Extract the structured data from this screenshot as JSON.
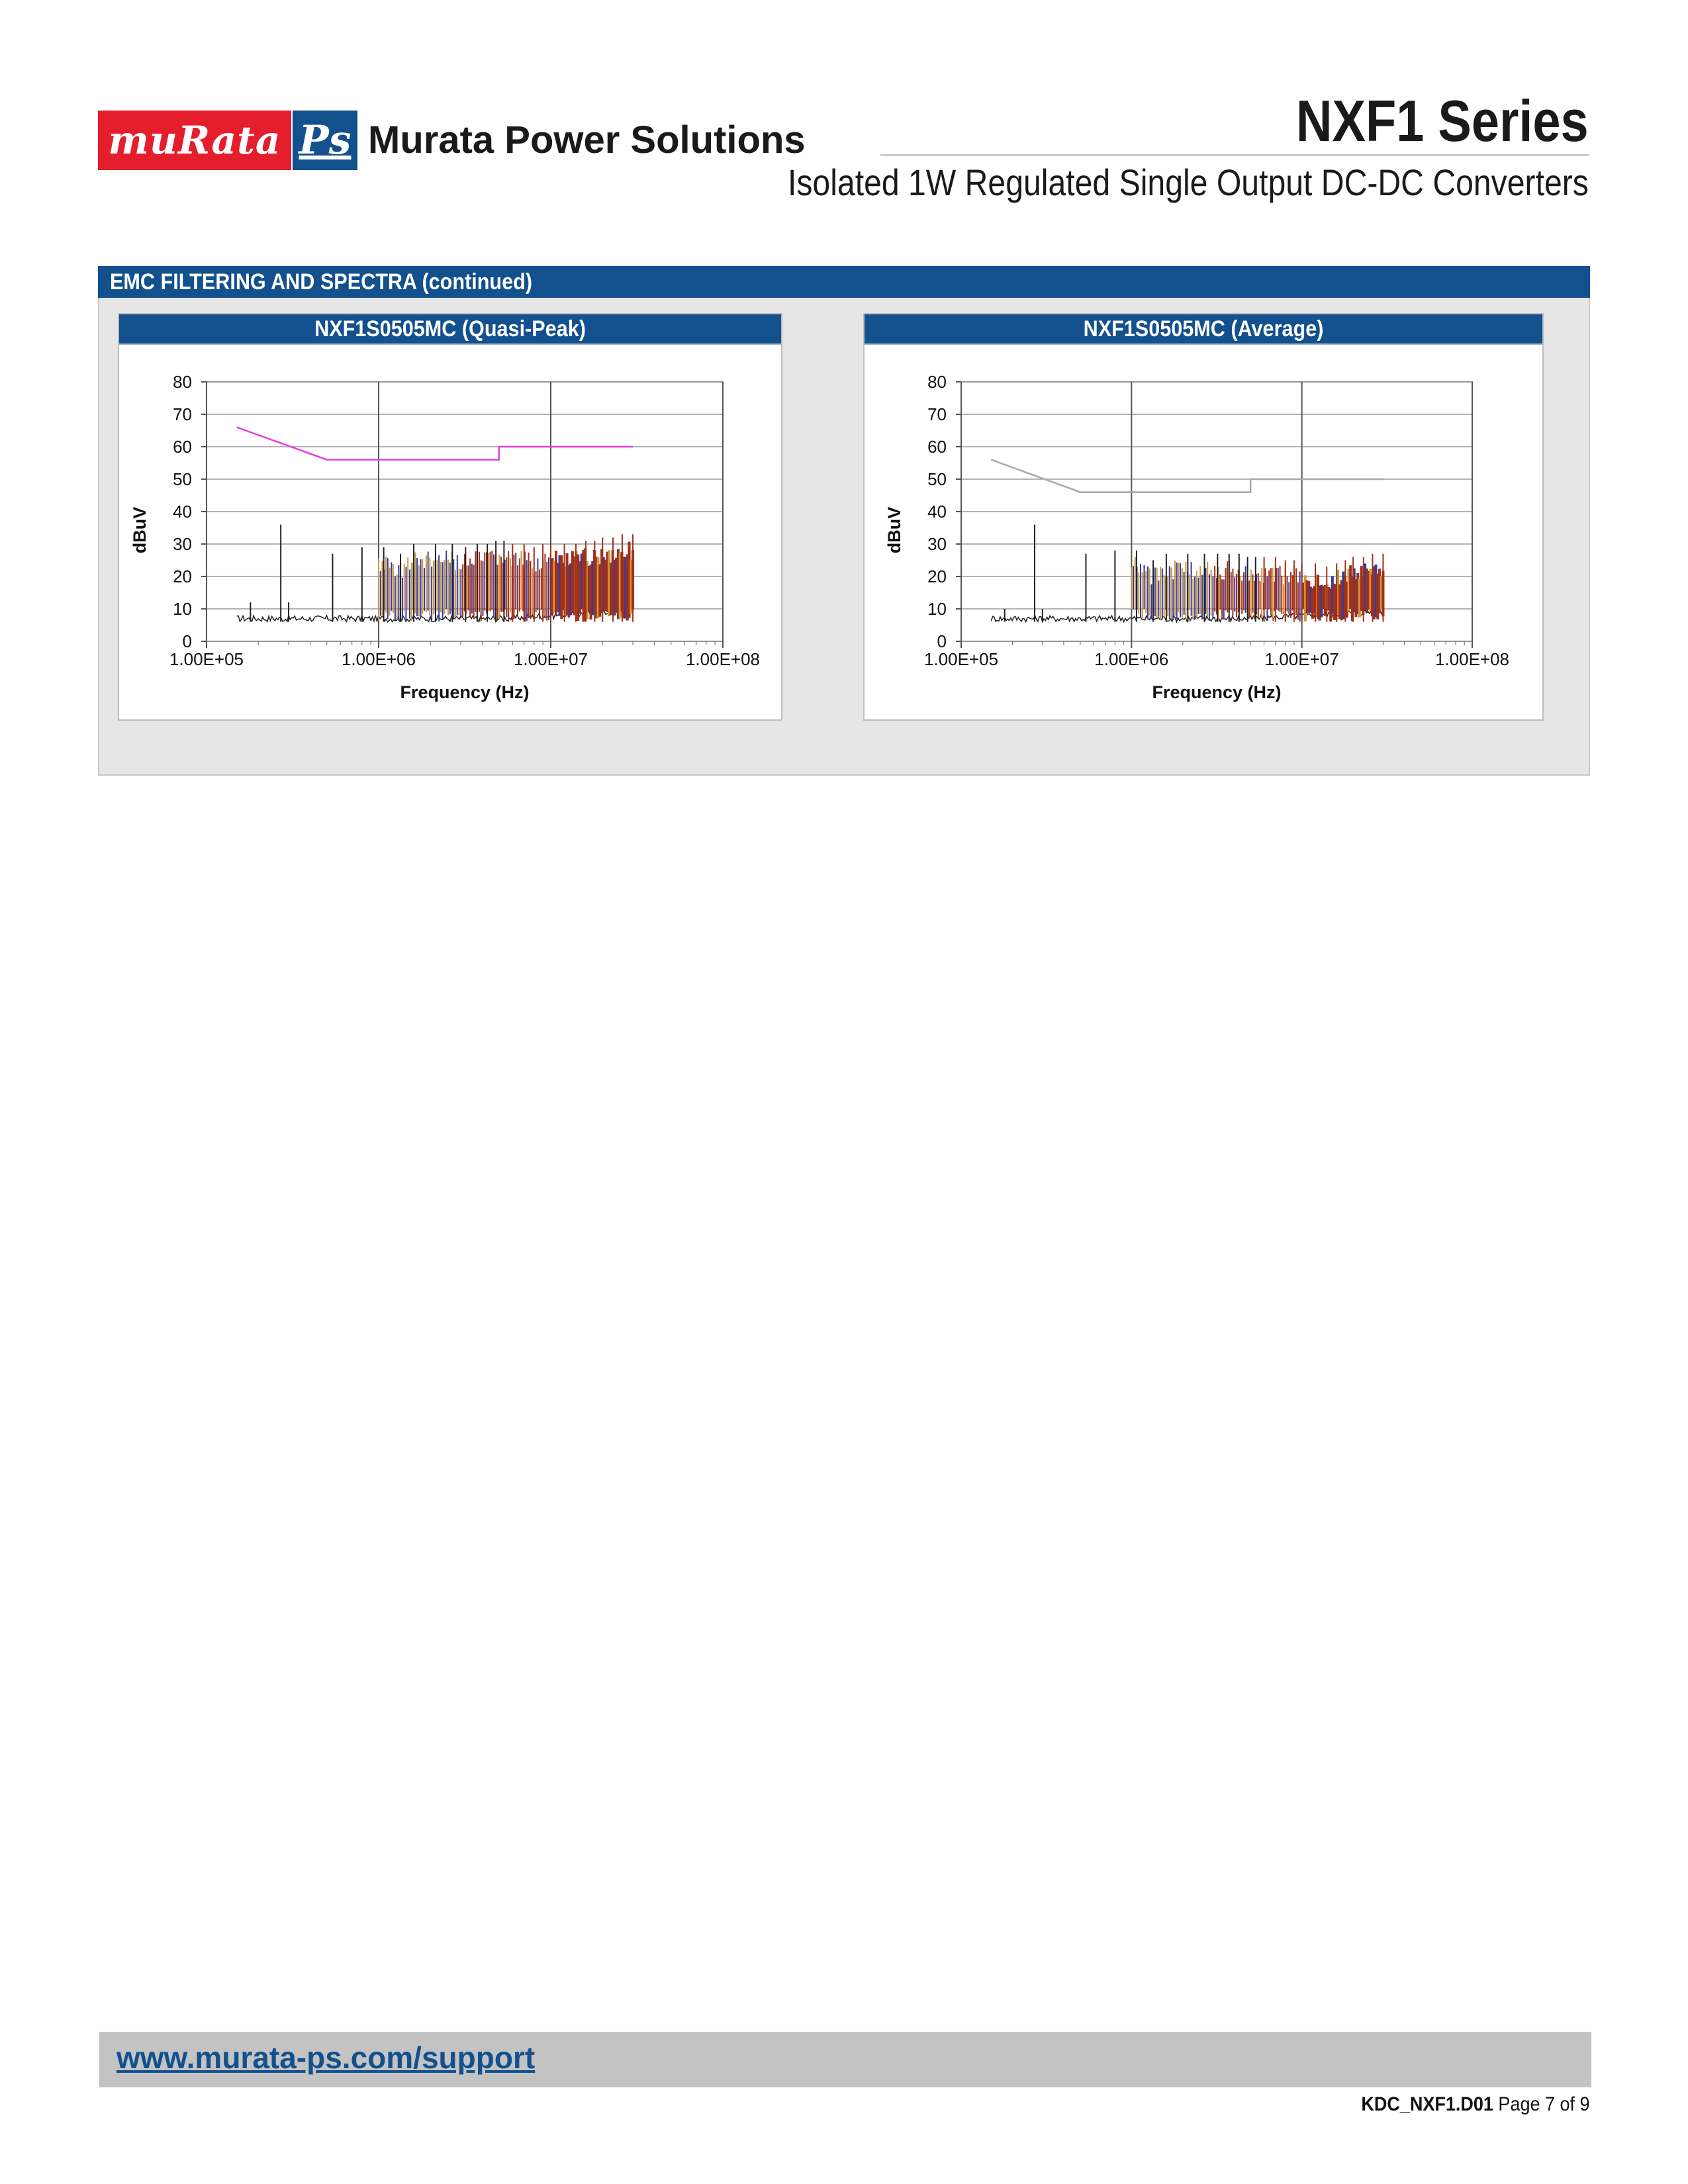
{
  "header": {
    "logo_murata": "muRata",
    "logo_ps": "Ps",
    "company": "Murata Power Solutions",
    "series": "NXF1 Series",
    "subtitle": "Isolated 1W Regulated Single Output DC-DC Converters"
  },
  "section": {
    "title": "EMC FILTERING AND SPECTRA (continued)"
  },
  "colors": {
    "brand_blue": "#12508e",
    "brand_red": "#e41e2d",
    "limit_quasi_peak": "#e040e0",
    "limit_average": "#a8a8a8",
    "spectrum_dark": "#222222",
    "spectrum_red": "#a0301a",
    "spectrum_blue": "#3a3aa0"
  },
  "chart_data": [
    {
      "type": "line",
      "panel_title": "NXF1S0505MC (Quasi-Peak)",
      "xlabel": "Frequency (Hz)",
      "ylabel": "dBuV",
      "x_scale": "log",
      "xlim": [
        100000,
        100000000
      ],
      "ylim": [
        0,
        80
      ],
      "x_tick_labels": [
        "1.00E+05",
        "1.00E+06",
        "1.00E+07",
        "1.00E+08"
      ],
      "y_tick_labels": [
        "0",
        "10",
        "20",
        "30",
        "40",
        "50",
        "60",
        "70",
        "80"
      ],
      "grid": true,
      "limit_line": {
        "x": [
          150000,
          500000,
          500000,
          5000000,
          5000000,
          30000000
        ],
        "y": [
          66,
          56,
          56,
          56,
          60,
          60
        ]
      },
      "peaks": {
        "x": [
          180000,
          270000,
          300000,
          540000,
          800000,
          1070000,
          1340000,
          1600000,
          2140000,
          2680000,
          3200000,
          3740000,
          4280000,
          4800000,
          5350000,
          6000000,
          7000000,
          8000000,
          9000000,
          10000000,
          12000000,
          14000000,
          16000000,
          18000000,
          20000000,
          23000000,
          26000000,
          30000000
        ],
        "y": [
          12,
          36,
          12,
          27,
          29,
          29,
          27,
          30,
          30,
          30,
          29,
          30,
          30,
          31,
          31,
          30,
          30,
          29,
          30,
          30,
          30,
          30,
          31,
          31,
          32,
          32,
          33,
          33
        ]
      }
    },
    {
      "type": "line",
      "panel_title": "NXF1S0505MC  (Average)",
      "xlabel": "Frequency (Hz)",
      "ylabel": "dBuV",
      "x_scale": "log",
      "xlim": [
        100000,
        100000000
      ],
      "ylim": [
        0,
        80
      ],
      "x_tick_labels": [
        "1.00E+05",
        "1.00E+06",
        "1.00E+07",
        "1.00E+08"
      ],
      "y_tick_labels": [
        "0",
        "10",
        "20",
        "30",
        "40",
        "50",
        "60",
        "70",
        "80"
      ],
      "grid": true,
      "limit_line": {
        "x": [
          150000,
          500000,
          500000,
          5000000,
          5000000,
          30000000
        ],
        "y": [
          56,
          46,
          46,
          46,
          50,
          50
        ]
      },
      "peaks": {
        "x": [
          180000,
          270000,
          300000,
          540000,
          800000,
          1070000,
          1340000,
          1600000,
          2140000,
          2680000,
          3200000,
          3740000,
          4280000,
          4800000,
          5350000,
          6000000,
          7000000,
          8000000,
          9000000,
          10000000,
          12000000,
          14000000,
          16000000,
          18000000,
          20000000,
          23000000,
          26000000,
          30000000
        ],
        "y": [
          10,
          36,
          10,
          27,
          28,
          28,
          25,
          27,
          27,
          27,
          27,
          27,
          27,
          26,
          26,
          26,
          26,
          25,
          25,
          24,
          24,
          23,
          24,
          25,
          26,
          26,
          27,
          27
        ]
      }
    }
  ],
  "footer": {
    "link": "www.murata-ps.com/support",
    "doc_id": "KDC_NXF1.D01",
    "page": "Page 7 of 9"
  }
}
